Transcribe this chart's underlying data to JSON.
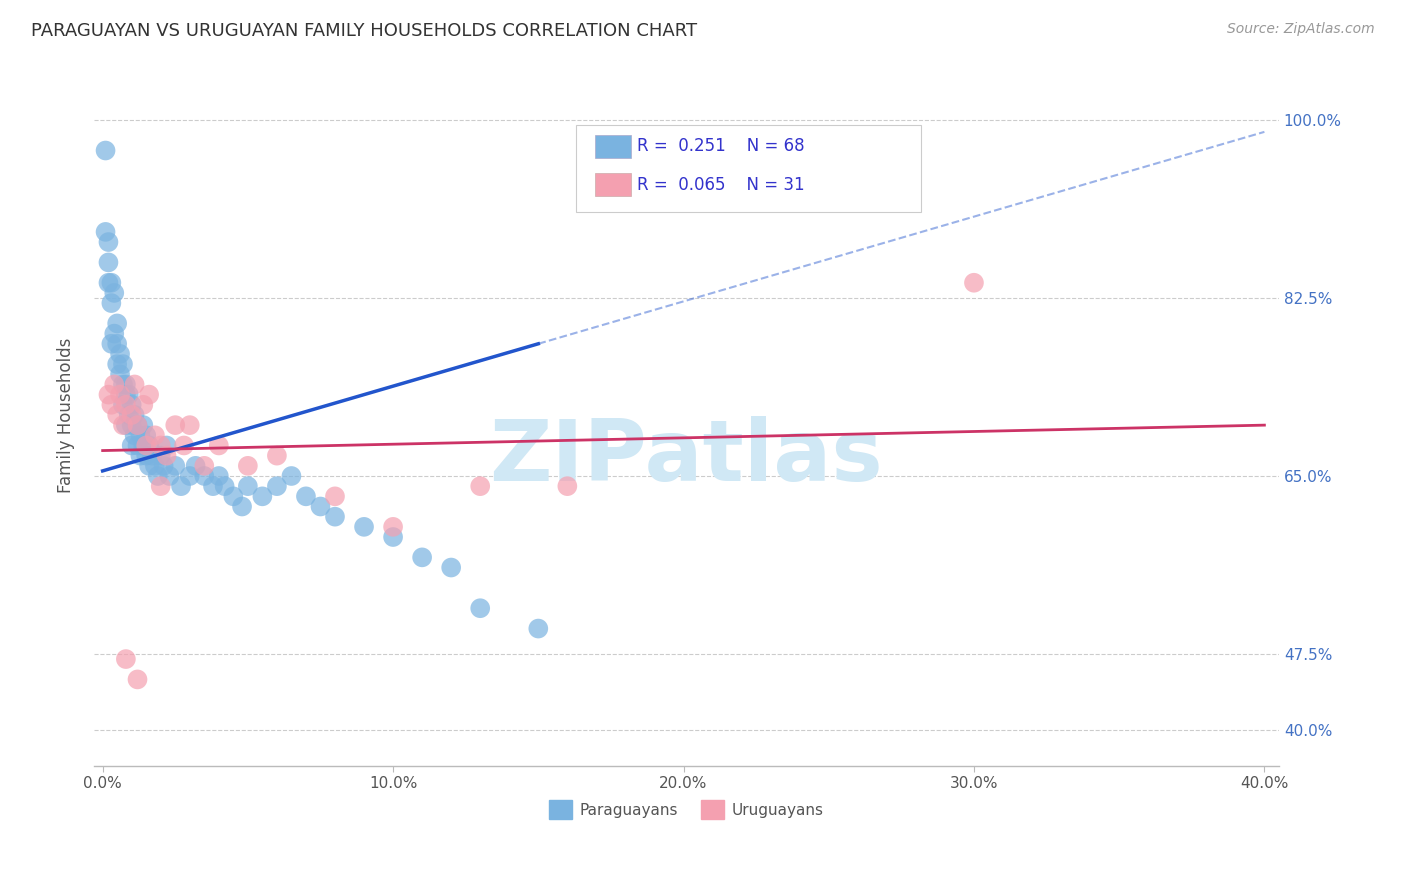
{
  "title": "PARAGUAYAN VS URUGUAYAN FAMILY HOUSEHOLDS CORRELATION CHART",
  "source": "Source: ZipAtlas.com",
  "ylabel": "Family Households",
  "x_tick_labels": [
    "0.0%",
    "10.0%",
    "20.0%",
    "30.0%",
    "40.0%"
  ],
  "x_tick_values": [
    0.0,
    0.1,
    0.2,
    0.3,
    0.4
  ],
  "y_tick_labels": [
    "100.0%",
    "82.5%",
    "65.0%",
    "47.5%",
    "40.0%"
  ],
  "y_tick_values": [
    1.0,
    0.825,
    0.65,
    0.475,
    0.4
  ],
  "xlim": [
    -0.003,
    0.405
  ],
  "ylim": [
    0.365,
    1.055
  ],
  "legend_paraguayan": "Paraguayans",
  "legend_uruguayan": "Uruguayans",
  "R_paraguayan": 0.251,
  "N_paraguayan": 68,
  "R_uruguayan": 0.065,
  "N_uruguayan": 31,
  "color_paraguayan": "#7ab3e0",
  "color_uruguayan": "#f4a0b0",
  "color_trendline_paraguayan": "#2255cc",
  "color_trendline_uruguayan": "#cc3366",
  "watermark_color": "#d0e8f5",
  "paraguayan_x": [
    0.001,
    0.001,
    0.002,
    0.002,
    0.002,
    0.003,
    0.003,
    0.003,
    0.004,
    0.004,
    0.005,
    0.005,
    0.005,
    0.006,
    0.006,
    0.007,
    0.007,
    0.007,
    0.008,
    0.008,
    0.008,
    0.009,
    0.009,
    0.01,
    0.01,
    0.01,
    0.011,
    0.011,
    0.012,
    0.012,
    0.013,
    0.013,
    0.014,
    0.014,
    0.015,
    0.015,
    0.016,
    0.016,
    0.017,
    0.018,
    0.019,
    0.02,
    0.021,
    0.022,
    0.023,
    0.025,
    0.027,
    0.03,
    0.032,
    0.035,
    0.038,
    0.04,
    0.042,
    0.045,
    0.048,
    0.05,
    0.055,
    0.06,
    0.065,
    0.07,
    0.075,
    0.08,
    0.09,
    0.1,
    0.11,
    0.12,
    0.13,
    0.15
  ],
  "paraguayan_y": [
    0.97,
    0.89,
    0.88,
    0.86,
    0.84,
    0.84,
    0.82,
    0.78,
    0.83,
    0.79,
    0.8,
    0.78,
    0.76,
    0.77,
    0.75,
    0.76,
    0.74,
    0.72,
    0.74,
    0.73,
    0.7,
    0.73,
    0.71,
    0.72,
    0.7,
    0.68,
    0.71,
    0.69,
    0.7,
    0.68,
    0.69,
    0.67,
    0.7,
    0.68,
    0.69,
    0.67,
    0.68,
    0.66,
    0.67,
    0.66,
    0.65,
    0.67,
    0.66,
    0.68,
    0.65,
    0.66,
    0.64,
    0.65,
    0.66,
    0.65,
    0.64,
    0.65,
    0.64,
    0.63,
    0.62,
    0.64,
    0.63,
    0.64,
    0.65,
    0.63,
    0.62,
    0.61,
    0.6,
    0.59,
    0.57,
    0.56,
    0.52,
    0.5
  ],
  "uruguayan_x": [
    0.002,
    0.003,
    0.004,
    0.005,
    0.006,
    0.007,
    0.008,
    0.01,
    0.011,
    0.012,
    0.014,
    0.015,
    0.016,
    0.018,
    0.02,
    0.022,
    0.025,
    0.028,
    0.03,
    0.035,
    0.04,
    0.05,
    0.06,
    0.08,
    0.1,
    0.13,
    0.16,
    0.008,
    0.012,
    0.02,
    0.3
  ],
  "uruguayan_y": [
    0.73,
    0.72,
    0.74,
    0.71,
    0.73,
    0.7,
    0.72,
    0.71,
    0.74,
    0.7,
    0.72,
    0.68,
    0.73,
    0.69,
    0.68,
    0.67,
    0.7,
    0.68,
    0.7,
    0.66,
    0.68,
    0.66,
    0.67,
    0.63,
    0.6,
    0.64,
    0.64,
    0.47,
    0.45,
    0.64,
    0.84
  ],
  "trendline_p_x0": 0.0,
  "trendline_p_x1": 0.15,
  "trendline_p_xdash0": 0.15,
  "trendline_p_xdash1": 0.4
}
